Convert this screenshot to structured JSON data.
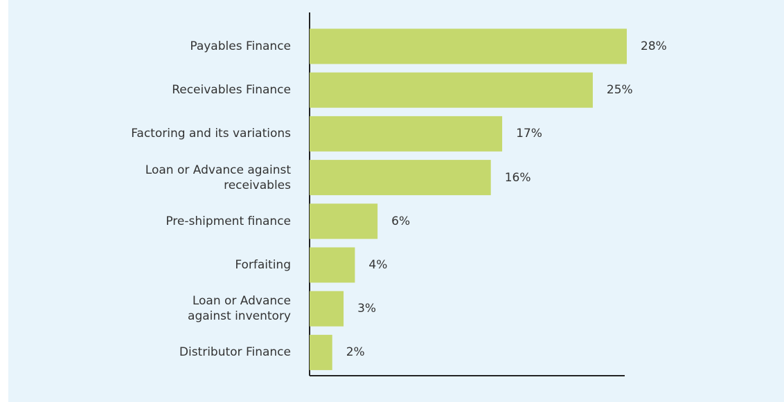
{
  "chart_data": {
    "type": "bar",
    "orientation": "horizontal",
    "categories": [
      "Payables Finance",
      "Receivables Finance",
      "Factoring and its variations",
      "Loan or Advance against\nreceivables",
      "Pre-shipment finance",
      "Forfaiting",
      "Loan or Advance\nagainst inventory",
      "Distributor Finance"
    ],
    "values": [
      28,
      25,
      17,
      16,
      6,
      4,
      3,
      2
    ],
    "value_labels": [
      "28%",
      "25%",
      "17%",
      "16%",
      "6%",
      "4%",
      "3%",
      "2%"
    ],
    "color": "#c5d86d",
    "xlim": [
      0,
      28
    ]
  }
}
